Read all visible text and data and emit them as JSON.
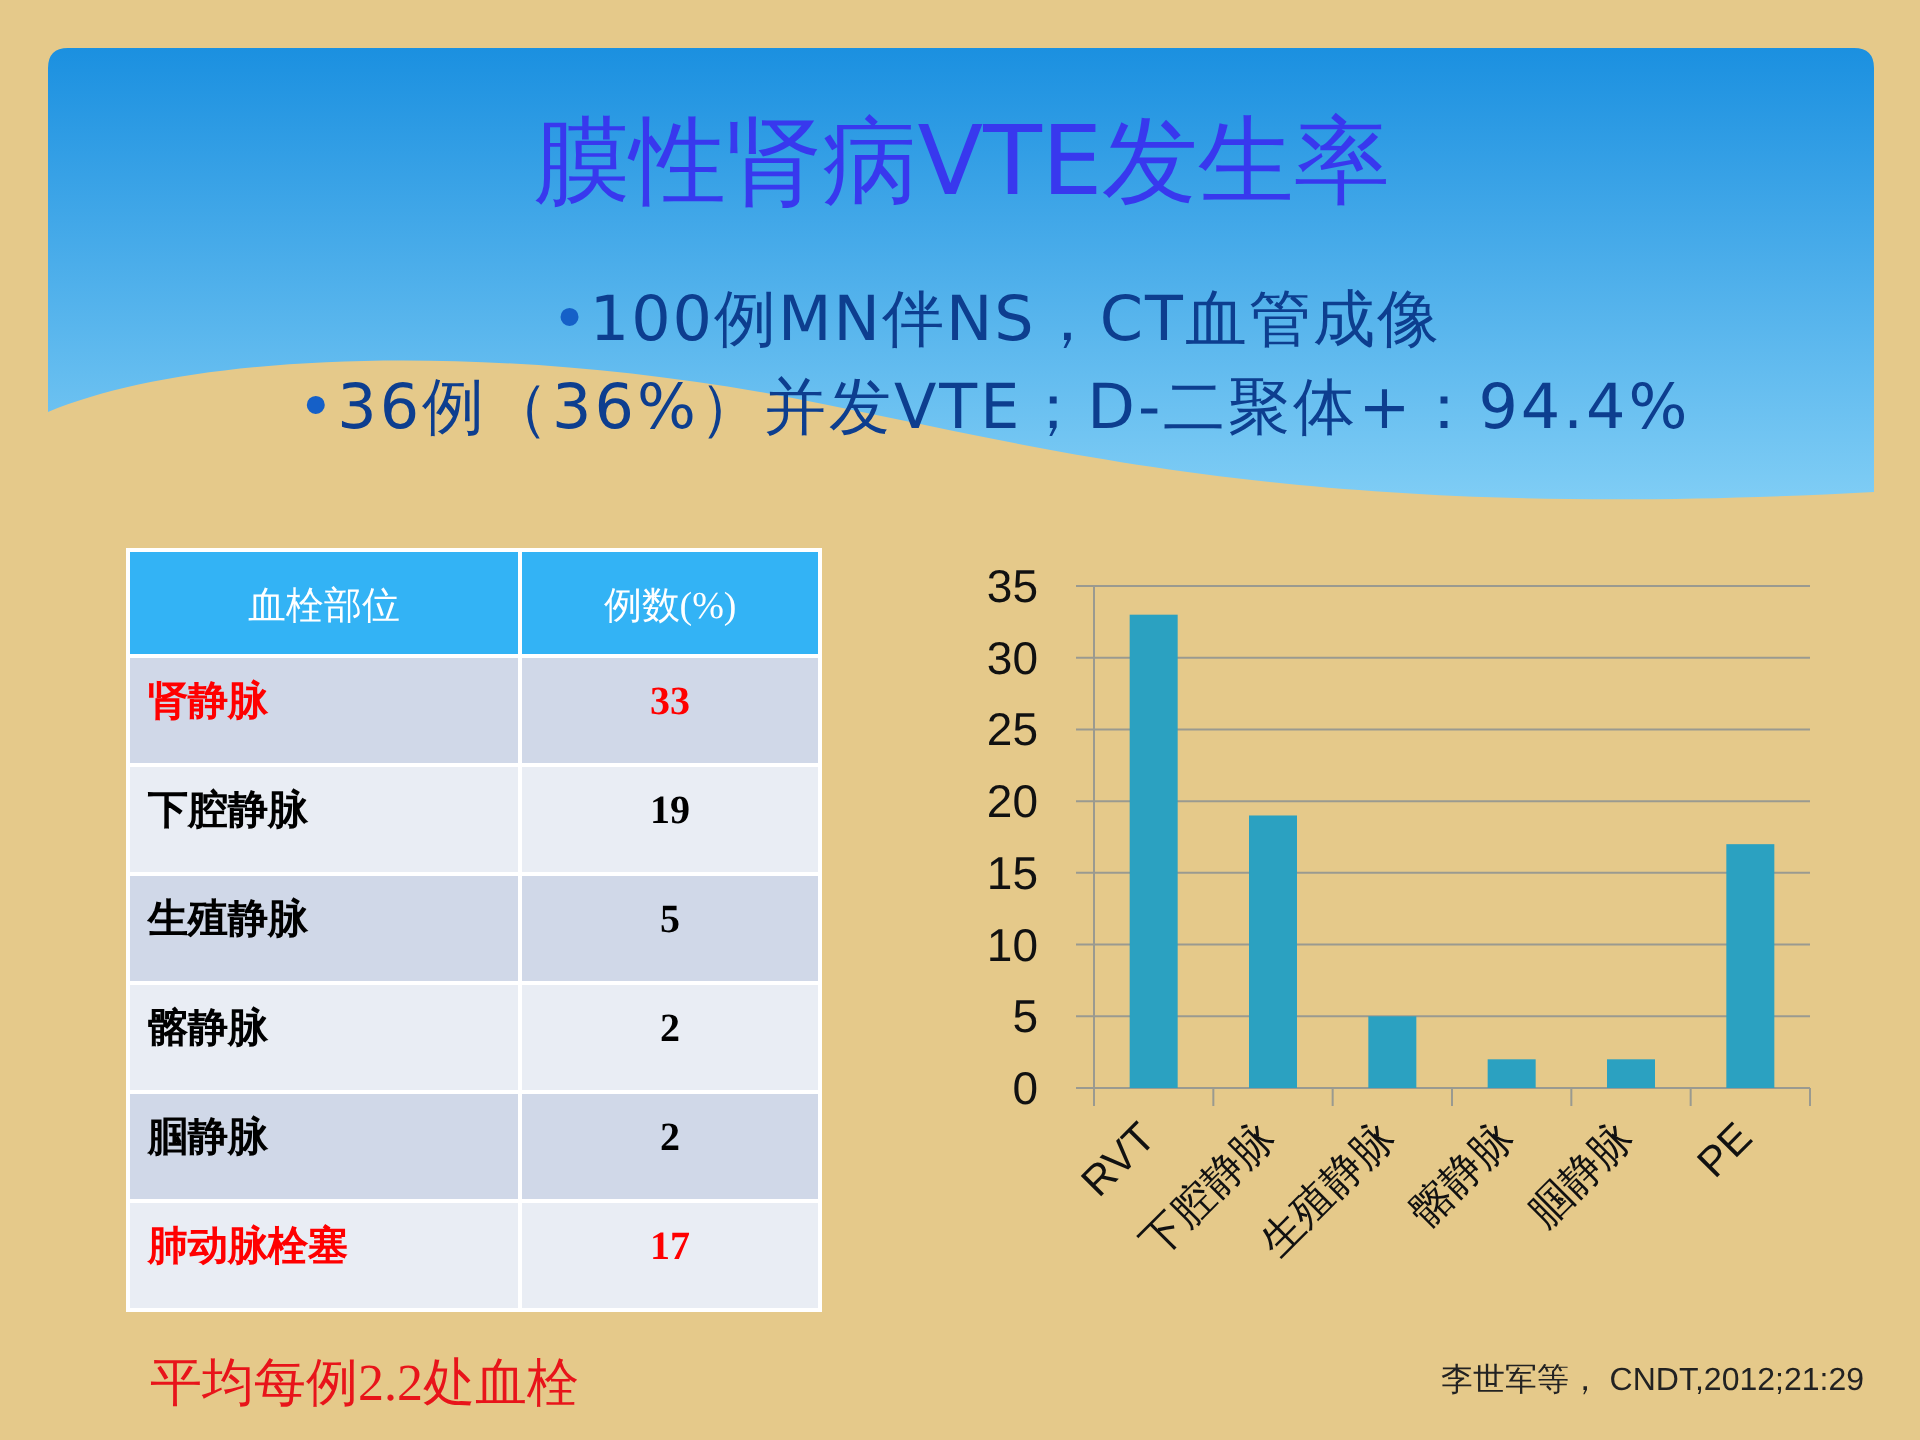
{
  "chart_data": [
    {
      "type": "other",
      "title": "膜性肾病VTE发生率",
      "subtitle": "•100例MN伴NS，CT血管成像",
      "annotations": [
        "•36例（36%）并发VTE；D-二聚体+：94.4%",
        "平均每例2.2处血栓"
      ],
      "xlabel": "血栓部位",
      "ylabel": "例数(%)",
      "categories": [
        "肾静脉",
        "下腔静脉",
        "生殖静脉",
        "髂静脉",
        "腘静脉",
        "肺动脉栓塞"
      ],
      "values": [
        33,
        19,
        5,
        2,
        2,
        17
      ],
      "data_labels": true
    },
    {
      "type": "bar",
      "categories": [
        "RVT",
        "下腔静脉",
        "生殖静脉",
        "髂静脉",
        "腘静脉",
        "PE"
      ],
      "values": [
        33,
        19,
        5,
        2,
        2,
        17
      ],
      "color": "#2ba1c1",
      "ylim": [
        0,
        35
      ],
      "yticks": [
        0,
        5,
        10,
        15,
        20,
        25,
        30,
        35
      ],
      "grid": "y",
      "annotations": [
        "李世军等， CNDT,2012;21:29"
      ]
    }
  ]
}
